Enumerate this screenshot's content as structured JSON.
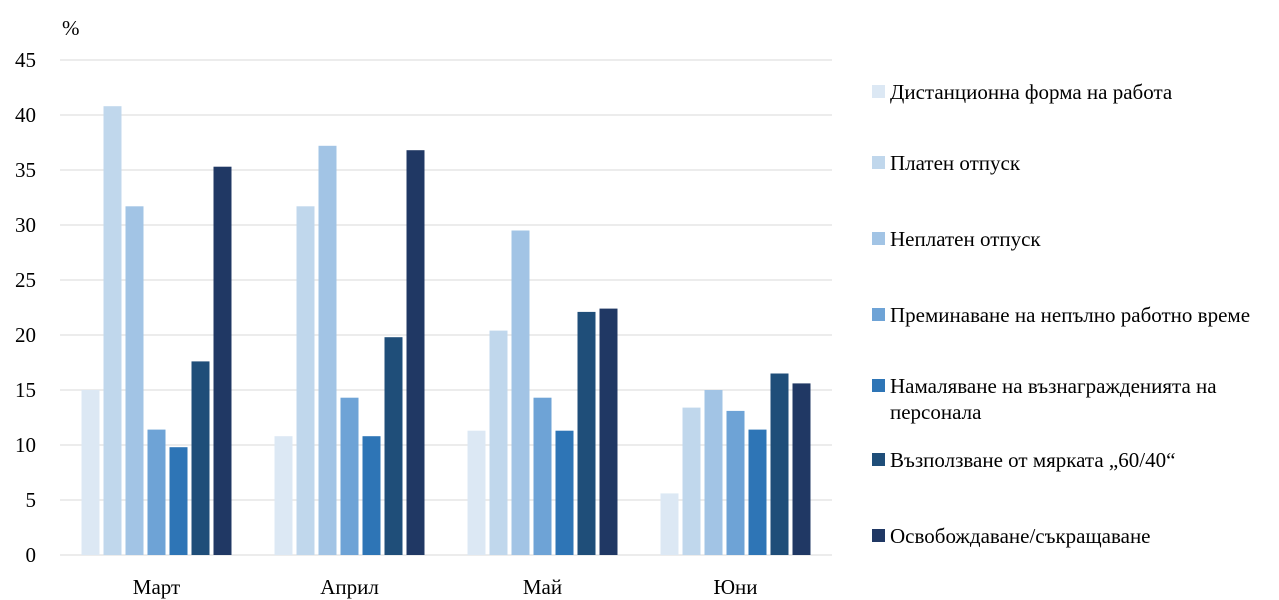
{
  "chart_data": {
    "type": "bar",
    "ylabel": "%",
    "ylim": [
      0,
      45
    ],
    "yticks": [
      0,
      5,
      10,
      15,
      20,
      25,
      30,
      35,
      40,
      45
    ],
    "grid": true,
    "legend_position": "right",
    "categories": [
      "Март",
      "Април",
      "Май",
      "Юни"
    ],
    "series": [
      {
        "name": "Дистанционна  форма на работа",
        "color": "#dce8f4",
        "values": [
          15.0,
          10.8,
          11.3,
          5.6
        ]
      },
      {
        "name": "Платен отпуск",
        "color": "#c0d7ec",
        "values": [
          40.8,
          31.7,
          20.4,
          13.4
        ]
      },
      {
        "name": "Неплатен отпуск",
        "color": "#a2c4e5",
        "values": [
          31.7,
          37.2,
          29.5,
          15.0
        ]
      },
      {
        "name": "Преминаване на непълно работно време",
        "color": "#6ea3d6",
        "values": [
          11.4,
          14.3,
          14.3,
          13.1
        ]
      },
      {
        "name": "Намаляване на възнагражденията на персонала",
        "color": "#2e75b6",
        "values": [
          9.8,
          10.8,
          11.3,
          11.4
        ]
      },
      {
        "name": "Възползване от мярката „60/40“",
        "color": "#1f4e79",
        "values": [
          17.6,
          19.8,
          22.1,
          16.5
        ]
      },
      {
        "name": "Освобождаване/съкращаване",
        "color": "#203864",
        "values": [
          35.3,
          36.8,
          22.4,
          15.6
        ]
      }
    ]
  }
}
